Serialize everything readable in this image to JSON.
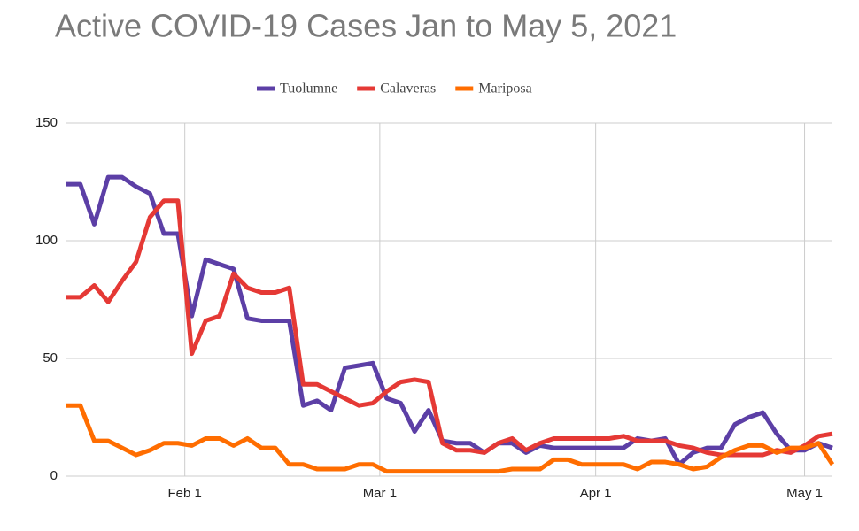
{
  "chart_data": {
    "type": "line",
    "title": "Active COVID-19 Cases Jan to May 5, 2021",
    "x": [
      15,
      17,
      19,
      21,
      23,
      25,
      27,
      29,
      31,
      33,
      35,
      37,
      39,
      41,
      43,
      45,
      47,
      49,
      51,
      53,
      55,
      57,
      59,
      61,
      63,
      65,
      67,
      69,
      71,
      73,
      75,
      77,
      79,
      81,
      83,
      85,
      87,
      89,
      91,
      93,
      95,
      97,
      99,
      101,
      103,
      105,
      107,
      109,
      111,
      113,
      115,
      117,
      119,
      121,
      123,
      125
    ],
    "series": [
      {
        "name": "Tuolumne",
        "color": "#5c3fa6",
        "values": [
          124,
          124,
          107,
          127,
          127,
          123,
          120,
          103,
          103,
          68,
          92,
          90,
          88,
          67,
          66,
          66,
          66,
          30,
          32,
          28,
          46,
          47,
          48,
          33,
          31,
          19,
          28,
          15,
          14,
          14,
          10,
          14,
          14,
          10,
          13,
          12,
          12,
          12,
          12,
          12,
          12,
          16,
          15,
          16,
          5,
          10,
          12,
          12,
          22,
          25,
          27,
          18,
          11,
          11,
          14,
          12
        ]
      },
      {
        "name": "Calaveras",
        "color": "#e53935",
        "values": [
          76,
          76,
          81,
          74,
          83,
          91,
          110,
          117,
          117,
          52,
          66,
          68,
          86,
          80,
          78,
          78,
          80,
          39,
          39,
          36,
          33,
          30,
          31,
          36,
          40,
          41,
          40,
          14,
          11,
          11,
          10,
          14,
          16,
          11,
          14,
          16,
          16,
          16,
          16,
          16,
          17,
          15,
          15,
          15,
          13,
          12,
          10,
          9,
          9,
          9,
          9,
          11,
          10,
          13,
          17,
          18
        ]
      },
      {
        "name": "Mariposa",
        "color": "#ff6d00",
        "values": [
          30,
          30,
          15,
          15,
          12,
          9,
          11,
          14,
          14,
          13,
          16,
          16,
          13,
          16,
          12,
          12,
          5,
          5,
          3,
          3,
          3,
          5,
          5,
          2,
          2,
          2,
          2,
          2,
          2,
          2,
          2,
          2,
          3,
          3,
          3,
          7,
          7,
          5,
          5,
          5,
          5,
          3,
          6,
          6,
          5,
          3,
          4,
          8,
          11,
          13,
          13,
          10,
          12,
          12,
          14,
          5
        ]
      }
    ],
    "xlim": [
      15,
      125
    ],
    "xticks": [
      {
        "value": 32,
        "label": "Feb 1"
      },
      {
        "value": 60,
        "label": "Mar 1"
      },
      {
        "value": 91,
        "label": "Apr 1"
      },
      {
        "value": 121,
        "label": "May 1"
      }
    ],
    "ylim": [
      0,
      150
    ],
    "yticks": [
      0,
      50,
      100,
      150
    ],
    "grid": true,
    "legend": "top"
  }
}
